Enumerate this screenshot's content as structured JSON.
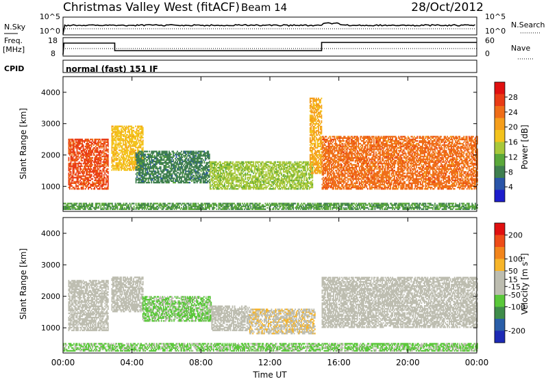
{
  "header": {
    "station": "Christmas Valley West (fitACF)",
    "beam": "Beam 14",
    "date": "28/Oct/2012"
  },
  "strips": {
    "nsky_label": "N.Sky",
    "nsearch_label": "N.Search",
    "freq_label_line1": "Freq.",
    "freq_label_line2": "[MHz]",
    "nave_label": "Nave",
    "cpid_label": "CPID",
    "cpid_value": "normal (fast) 151 IF",
    "noise_ticks": [
      "10^5",
      "10^0"
    ],
    "freq_ticks": [
      "18",
      "8"
    ],
    "nave_ticks": [
      "60",
      "0"
    ]
  },
  "chart_data": [
    {
      "type": "heatmap",
      "name": "power",
      "ylabel": "Slant Range [km]",
      "y_ticks": [
        "1000",
        "2000",
        "3000",
        "4000"
      ],
      "ylim": [
        200,
        4500
      ],
      "colorbar_label": "Power [dB]",
      "colorbar_ticks": [
        "4",
        "8",
        "12",
        "16",
        "20",
        "24",
        "28"
      ],
      "colorbar_colors": [
        "#1d1dcc",
        "#2a55a8",
        "#3f7f4f",
        "#5aa83a",
        "#a8c83a",
        "#f3c31d",
        "#f59e1c",
        "#ef6d18",
        "#e93b15",
        "#e01010"
      ],
      "features": [
        {
          "t": [
            0.3,
            2.6
          ],
          "range": [
            900,
            2500
          ],
          "level": 26
        },
        {
          "t": [
            2.8,
            4.6
          ],
          "range": [
            1500,
            2900
          ],
          "level": 18
        },
        {
          "t": [
            4.2,
            8.5
          ],
          "range": [
            1100,
            2100
          ],
          "level": 8
        },
        {
          "t": [
            8.5,
            14.5
          ],
          "range": [
            900,
            1800
          ],
          "level": 14
        },
        {
          "t": [
            14.3,
            15.0
          ],
          "range": [
            1400,
            3800
          ],
          "level": 20
        },
        {
          "t": [
            15.0,
            24.0
          ],
          "range": [
            900,
            2600
          ],
          "level": 24
        },
        {
          "t": [
            0.0,
            24.0
          ],
          "range": [
            250,
            450
          ],
          "level": 10
        }
      ]
    },
    {
      "type": "heatmap",
      "name": "velocity",
      "xlabel": "Time UT",
      "x_ticks": [
        "00:00",
        "04:00",
        "08:00",
        "12:00",
        "16:00",
        "20:00",
        "00:00"
      ],
      "ylabel": "Slant Range [km]",
      "y_ticks": [
        "1000",
        "2000",
        "3000",
        "4000"
      ],
      "ylim": [
        200,
        4500
      ],
      "colorbar_label": "Velocity [m s",
      "colorbar_label_sup": "-1",
      "colorbar_ticks": [
        "200",
        "100",
        "50",
        "15",
        "-15",
        "-50",
        "-100",
        "-200"
      ],
      "colorbar_colors": [
        "#1d2ab5",
        "#2a5ea8",
        "#3f8c4a",
        "#5ac83a",
        "#bdbdb0",
        "#bdbdb0",
        "#f7b52a",
        "#f2851c",
        "#ee4c18",
        "#e01010"
      ],
      "features": [
        {
          "t": [
            0.3,
            2.6
          ],
          "range": [
            900,
            2500
          ],
          "level": 0
        },
        {
          "t": [
            2.8,
            4.6
          ],
          "range": [
            1500,
            2600
          ],
          "level": 0
        },
        {
          "t": [
            4.6,
            8.6
          ],
          "range": [
            1200,
            2000
          ],
          "level": -60
        },
        {
          "t": [
            8.6,
            10.8
          ],
          "range": [
            900,
            1700
          ],
          "level": -15
        },
        {
          "t": [
            10.8,
            14.6
          ],
          "range": [
            800,
            1600
          ],
          "level": 40
        },
        {
          "t": [
            15.0,
            24.0
          ],
          "range": [
            1000,
            2600
          ],
          "level": 0
        },
        {
          "t": [
            0.0,
            24.0
          ],
          "range": [
            250,
            500
          ],
          "level": -60
        }
      ]
    }
  ]
}
